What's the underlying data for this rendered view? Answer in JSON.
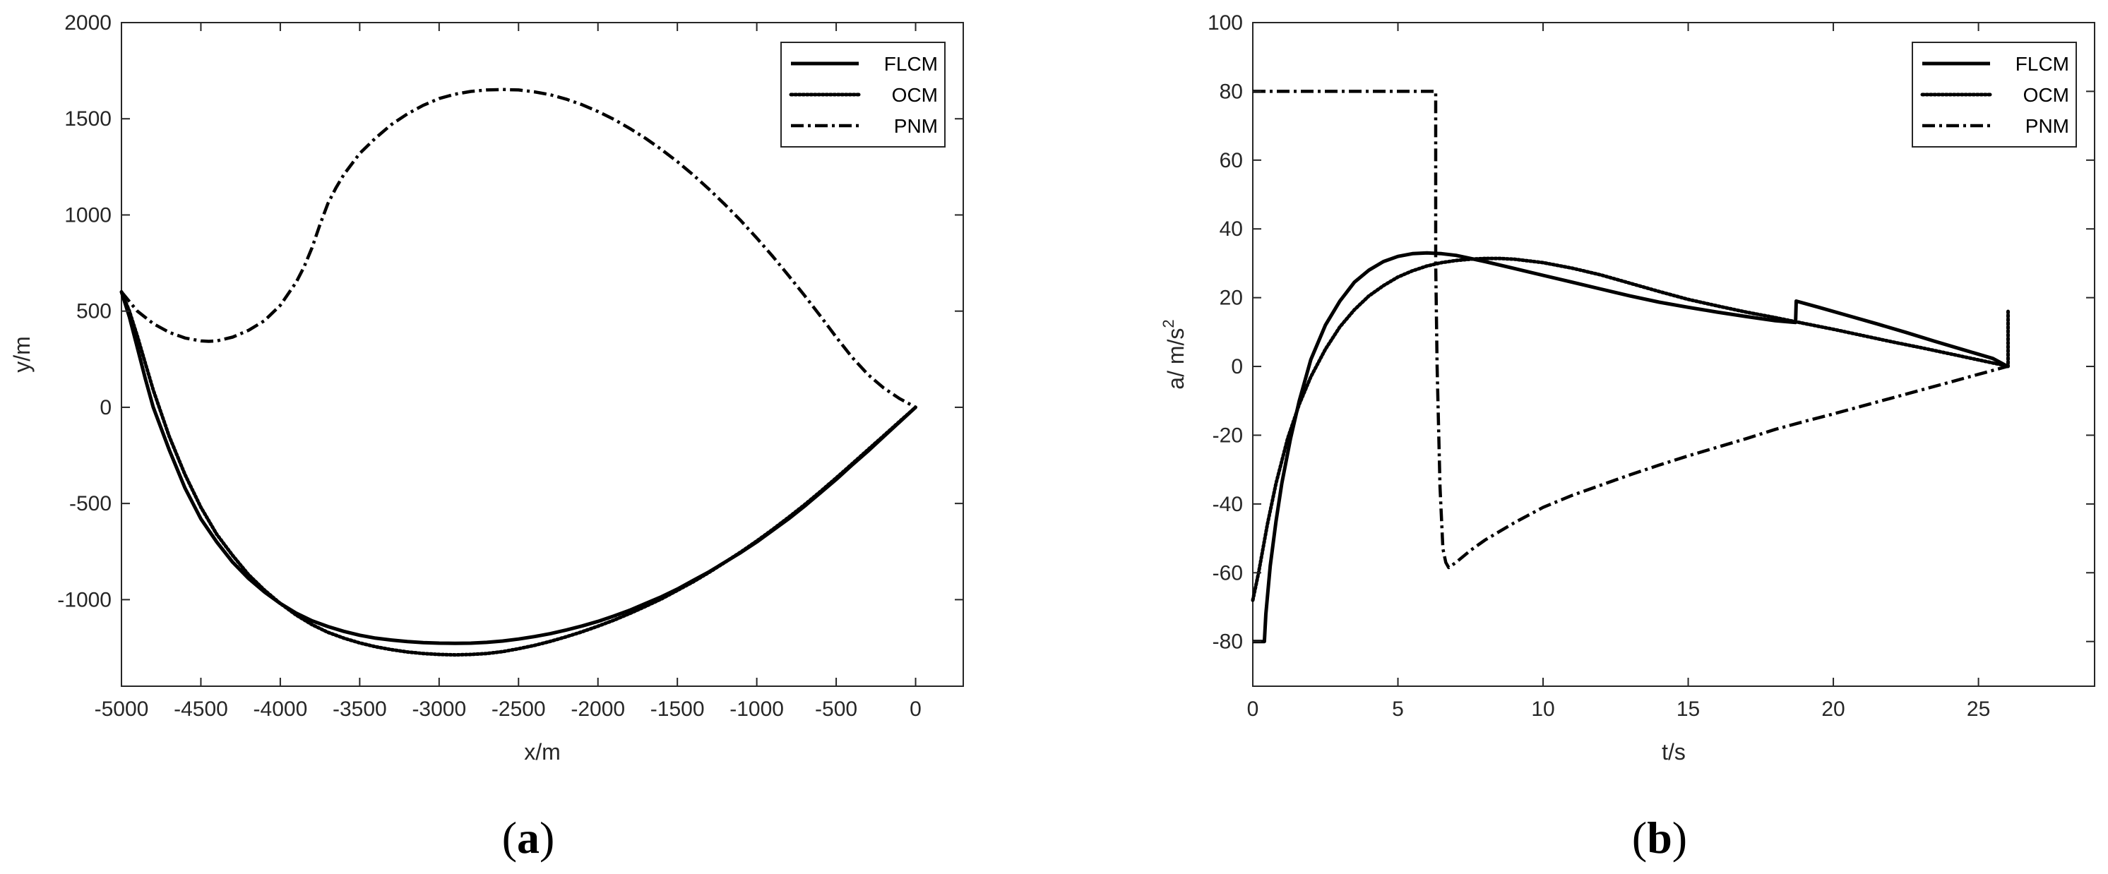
{
  "chart_data": [
    {
      "type": "line",
      "panel_label_open": "(",
      "panel_label_letter": "a",
      "panel_label_close": ")",
      "xlabel": "x/m",
      "ylabel": "y/m",
      "xlim": [
        -5000,
        300
      ],
      "ylim": [
        -1450,
        2000
      ],
      "xticks": [
        -5000,
        -4500,
        -4000,
        -3500,
        -3000,
        -2500,
        -2000,
        -1500,
        -1000,
        -500,
        0
      ],
      "xtick_labels": [
        "-5000",
        "-4500",
        "-4000",
        "-3500",
        "-3000",
        "-2500",
        "-2000",
        "-1500",
        "-1000",
        "-500",
        "0"
      ],
      "yticks": [
        -1000,
        -500,
        0,
        500,
        1000,
        1500,
        2000
      ],
      "ytick_labels": [
        "-1000",
        "-500",
        "0",
        "500",
        "1000",
        "1500",
        "2000"
      ],
      "grid": false,
      "legend_position": "top-right",
      "series": [
        {
          "name": "FLCM",
          "style": "solid",
          "x": [
            -5000,
            -4950,
            -4900,
            -4850,
            -4800,
            -4700,
            -4600,
            -4500,
            -4400,
            -4300,
            -4200,
            -4100,
            -4000,
            -3900,
            -3800,
            -3700,
            -3600,
            -3500,
            -3400,
            -3300,
            -3200,
            -3100,
            -3000,
            -2900,
            -2800,
            -2700,
            -2600,
            -2500,
            -2400,
            -2300,
            -2200,
            -2100,
            -2000,
            -1900,
            -1800,
            -1700,
            -1600,
            -1500,
            -1400,
            -1300,
            -1200,
            -1100,
            -1000,
            -900,
            -800,
            -700,
            -600,
            -500,
            -400,
            -300,
            -200,
            -100,
            0
          ],
          "y": [
            600,
            470,
            310,
            150,
            0,
            -220,
            -420,
            -580,
            -700,
            -805,
            -890,
            -960,
            -1020,
            -1070,
            -1110,
            -1140,
            -1165,
            -1185,
            -1200,
            -1210,
            -1218,
            -1223,
            -1226,
            -1227,
            -1226,
            -1222,
            -1215,
            -1205,
            -1192,
            -1177,
            -1158,
            -1137,
            -1113,
            -1085,
            -1055,
            -1020,
            -985,
            -945,
            -900,
            -855,
            -805,
            -755,
            -700,
            -640,
            -580,
            -515,
            -445,
            -375,
            -300,
            -228,
            -152,
            -76,
            0
          ]
        },
        {
          "name": "OCM",
          "style": "dotted",
          "x": [
            -5000,
            -4950,
            -4900,
            -4850,
            -4800,
            -4700,
            -4600,
            -4500,
            -4400,
            -4300,
            -4200,
            -4100,
            -4000,
            -3900,
            -3800,
            -3700,
            -3600,
            -3500,
            -3400,
            -3300,
            -3200,
            -3100,
            -3000,
            -2900,
            -2800,
            -2700,
            -2600,
            -2500,
            -2400,
            -2300,
            -2200,
            -2100,
            -2000,
            -1900,
            -1800,
            -1700,
            -1600,
            -1500,
            -1400,
            -1300,
            -1200,
            -1100,
            -1000,
            -900,
            -800,
            -700,
            -600,
            -500,
            -400,
            -300,
            -200,
            -100,
            0
          ],
          "y": [
            600,
            500,
            370,
            230,
            90,
            -150,
            -350,
            -520,
            -660,
            -770,
            -870,
            -950,
            -1020,
            -1080,
            -1130,
            -1170,
            -1200,
            -1225,
            -1245,
            -1260,
            -1272,
            -1280,
            -1285,
            -1287,
            -1285,
            -1280,
            -1270,
            -1255,
            -1238,
            -1217,
            -1193,
            -1167,
            -1138,
            -1107,
            -1072,
            -1035,
            -996,
            -952,
            -907,
            -858,
            -806,
            -752,
            -695,
            -635,
            -572,
            -507,
            -438,
            -367,
            -294,
            -220,
            -147,
            -73,
            0
          ]
        },
        {
          "name": "PNM",
          "style": "dashdot",
          "x": [
            -5000,
            -4900,
            -4800,
            -4700,
            -4600,
            -4500,
            -4450,
            -4400,
            -4300,
            -4200,
            -4100,
            -4000,
            -3900,
            -3850,
            -3800,
            -3750,
            -3700,
            -3650,
            -3600,
            -3500,
            -3400,
            -3300,
            -3200,
            -3100,
            -3000,
            -2900,
            -2800,
            -2700,
            -2600,
            -2500,
            -2400,
            -2300,
            -2200,
            -2100,
            -2000,
            -1900,
            -1800,
            -1700,
            -1600,
            -1500,
            -1400,
            -1300,
            -1200,
            -1100,
            -1000,
            -900,
            -800,
            -700,
            -600,
            -500,
            -400,
            -300,
            -200,
            -100,
            0
          ],
          "y": [
            600,
            500,
            435,
            390,
            360,
            345,
            343,
            345,
            365,
            400,
            450,
            530,
            650,
            730,
            830,
            950,
            1060,
            1140,
            1210,
            1320,
            1400,
            1470,
            1525,
            1570,
            1605,
            1628,
            1642,
            1650,
            1652,
            1650,
            1640,
            1625,
            1602,
            1573,
            1538,
            1497,
            1450,
            1398,
            1340,
            1277,
            1208,
            1133,
            1054,
            970,
            880,
            785,
            685,
            582,
            475,
            365,
            260,
            170,
            100,
            45,
            0
          ]
        }
      ]
    },
    {
      "type": "line",
      "panel_label_open": "(",
      "panel_label_letter": "b",
      "panel_label_close": ")",
      "xlabel": "t/s",
      "ylabel": "a/ m/s",
      "ylabel_superscript": "2",
      "xlim": [
        0,
        29
      ],
      "ylim": [
        -93,
        100
      ],
      "xticks": [
        0,
        5,
        10,
        15,
        20,
        25
      ],
      "xtick_labels": [
        "0",
        "5",
        "10",
        "15",
        "20",
        "25"
      ],
      "yticks": [
        -80,
        -60,
        -40,
        -20,
        0,
        20,
        40,
        60,
        80,
        100
      ],
      "ytick_labels": [
        "-80",
        "-60",
        "-40",
        "-20",
        "0",
        "20",
        "40",
        "60",
        "80",
        "100"
      ],
      "grid": false,
      "legend_position": "top-right",
      "series": [
        {
          "name": "FLCM",
          "style": "solid",
          "x": [
            0,
            0.4,
            0.45,
            0.6,
            0.8,
            1.0,
            1.3,
            1.6,
            2.0,
            2.5,
            3.0,
            3.5,
            4.0,
            4.5,
            5.0,
            5.5,
            6.0,
            6.5,
            7.0,
            8.0,
            9.0,
            10.0,
            11.0,
            12.0,
            13.0,
            14.0,
            15.0,
            16.0,
            17.0,
            18.0,
            18.7,
            18.72,
            19.5,
            20.5,
            21.5,
            22.5,
            23.5,
            24.5,
            25.5,
            26.0
          ],
          "y": [
            -80,
            -80,
            -72,
            -58,
            -45,
            -34,
            -21,
            -10,
            2,
            12,
            19,
            24.5,
            28,
            30.5,
            32,
            32.8,
            33,
            32.8,
            32.3,
            30.5,
            28.5,
            26.5,
            24.5,
            22.5,
            20.5,
            18.7,
            17.2,
            15.8,
            14.5,
            13.3,
            12.8,
            19,
            17.2,
            14.8,
            12.4,
            9.9,
            7.3,
            4.8,
            2.3,
            0
          ]
        },
        {
          "name": "OCM",
          "style": "dotted",
          "x": [
            0,
            0.2,
            0.5,
            0.8,
            1.2,
            1.6,
            2.0,
            2.5,
            3.0,
            3.5,
            4.0,
            4.5,
            5.0,
            5.5,
            6.0,
            6.5,
            7.0,
            7.5,
            8.0,
            8.5,
            9.0,
            10.0,
            11.0,
            12.0,
            13.0,
            14.0,
            15.0,
            16.0,
            17.0,
            18.0,
            19.0,
            20.0,
            21.0,
            22.0,
            23.0,
            24.0,
            25.0,
            25.9,
            26.0,
            26.02,
            26.02
          ],
          "y": [
            -68,
            -60,
            -46,
            -34,
            -21,
            -11,
            -3,
            5,
            11.5,
            16.5,
            20.5,
            23.5,
            26,
            27.8,
            29.2,
            30.2,
            30.8,
            31.2,
            31.4,
            31.4,
            31.2,
            30.2,
            28.6,
            26.6,
            24.2,
            21.8,
            19.5,
            17.6,
            15.8,
            14.2,
            12.5,
            10.8,
            9.0,
            7.2,
            5.5,
            3.7,
            1.9,
            0.3,
            0,
            0,
            16
          ]
        },
        {
          "name": "PNM",
          "style": "dashdot",
          "x": [
            0,
            6.3,
            6.3,
            6.35,
            6.45,
            6.55,
            6.65,
            6.75,
            7.0,
            7.5,
            8.0,
            9.0,
            10.0,
            11.0,
            12.0,
            13.0,
            14.0,
            15.0,
            16.0,
            17.0,
            18.0,
            19.0,
            20.0,
            21.0,
            22.0,
            23.0,
            24.0,
            25.0,
            26.0
          ],
          "y": [
            80,
            80,
            30,
            0,
            -35,
            -53,
            -57,
            -58.5,
            -57,
            -53.5,
            -50.5,
            -45.5,
            -41,
            -37.5,
            -34.5,
            -31.5,
            -28.7,
            -26,
            -23.5,
            -21,
            -18.3,
            -16,
            -13.8,
            -11.5,
            -9.2,
            -6.9,
            -4.6,
            -2.3,
            0
          ]
        }
      ]
    }
  ]
}
